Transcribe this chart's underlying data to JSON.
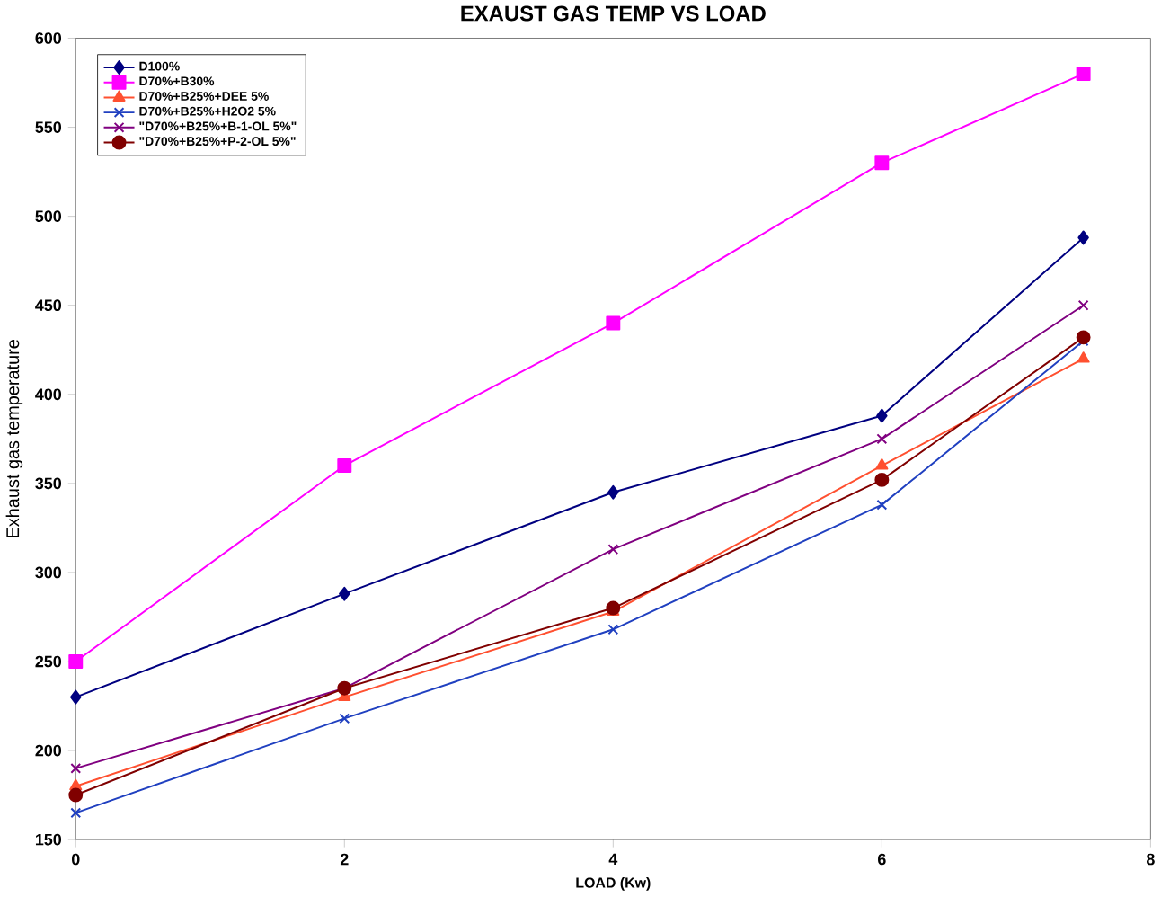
{
  "chart_data": {
    "type": "line",
    "title": "EXAUST GAS TEMP VS LOAD",
    "xlabel": "LOAD (Kw)",
    "ylabel": "Exhaust gas temperature",
    "x": [
      0,
      2,
      4,
      6,
      7.5
    ],
    "xlim": [
      0,
      8
    ],
    "xticks": [
      0,
      2,
      4,
      6,
      8
    ],
    "ylim": [
      150,
      600
    ],
    "yticks": [
      150,
      200,
      250,
      300,
      350,
      400,
      450,
      500,
      550,
      600
    ],
    "grid": false,
    "legend": "top left",
    "line_style": "solid",
    "series": [
      {
        "name": "D100%",
        "color": "#000080",
        "marker": "diamond",
        "values": [
          230,
          288,
          345,
          388,
          488
        ]
      },
      {
        "name": "D70%+B30%",
        "color": "#ff00ff",
        "marker": "square",
        "values": [
          250,
          360,
          440,
          530,
          580
        ]
      },
      {
        "name": "D70%+B25%+DEE 5%",
        "color": "#ff5030",
        "marker": "triangle",
        "values": [
          180,
          230,
          278,
          360,
          420
        ]
      },
      {
        "name": "D70%+B25%+H2O2 5%",
        "color": "#2040c0",
        "marker": "cross",
        "values": [
          165,
          218,
          268,
          338,
          430
        ]
      },
      {
        "name": "\"D70%+B25%+B-1-OL 5%\"",
        "color": "#800080",
        "marker": "cross",
        "values": [
          190,
          235,
          313,
          375,
          450
        ]
      },
      {
        "name": "\"D70%+B25%+P-2-OL 5%\"",
        "color": "#800000",
        "marker": "circle",
        "values": [
          175,
          235,
          280,
          352,
          432
        ]
      }
    ]
  }
}
